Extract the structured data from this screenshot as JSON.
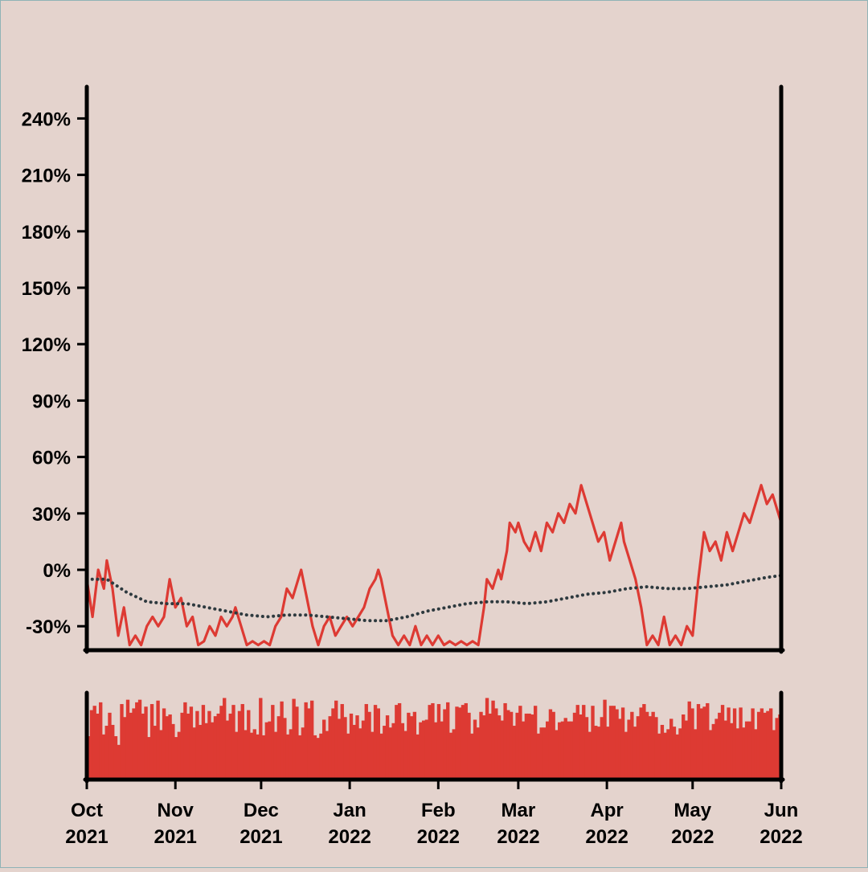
{
  "chart_data": {
    "type": "line",
    "title": "",
    "xlabel": "",
    "ylabel": "",
    "x_range": [
      "2021-10-01",
      "2022-06-01"
    ],
    "ylim": [
      -0.4,
      0.4
    ],
    "y_tick_values": [
      -0.3,
      0,
      0.3,
      0.6,
      0.9,
      1.2,
      1.5,
      1.8,
      2.1,
      2.4
    ],
    "y_tick_labels": [
      "-30%",
      "0%",
      "30%",
      "60%",
      "90%",
      "120%",
      "150%",
      "180%",
      "210%",
      "240%"
    ],
    "x_ticks": [
      {
        "date": "2021-10-01",
        "month": "Oct",
        "year": "2021"
      },
      {
        "date": "2021-11-01",
        "month": "Nov",
        "year": "2021"
      },
      {
        "date": "2021-12-01",
        "month": "Dec",
        "year": "2021"
      },
      {
        "date": "2022-01-01",
        "month": "Jan",
        "year": "2022"
      },
      {
        "date": "2022-02-01",
        "month": "Feb",
        "year": "2022"
      },
      {
        "date": "2022-03-01",
        "month": "Mar",
        "year": "2022"
      },
      {
        "date": "2022-04-01",
        "month": "Apr",
        "year": "2022"
      },
      {
        "date": "2022-05-01",
        "month": "May",
        "year": "2022"
      },
      {
        "date": "2022-06-01",
        "month": "Jun",
        "year": "2022"
      }
    ],
    "colors": {
      "price": "#dd3a33",
      "trend": "#2e3a3f",
      "background": "#e4d3cd",
      "axis": "#000000"
    },
    "series": [
      {
        "style": "line",
        "values": [
          [
            "2021-10-01",
            -0.05
          ],
          [
            "2021-10-03",
            -0.25
          ],
          [
            "2021-10-05",
            0.0
          ],
          [
            "2021-10-07",
            -0.1
          ],
          [
            "2021-10-08",
            0.05
          ],
          [
            "2021-10-10",
            -0.1
          ],
          [
            "2021-10-12",
            -0.35
          ],
          [
            "2021-10-14",
            -0.2
          ],
          [
            "2021-10-16",
            -0.4
          ],
          [
            "2021-10-18",
            -0.35
          ],
          [
            "2021-10-20",
            -0.4
          ],
          [
            "2021-10-22",
            -0.3
          ],
          [
            "2021-10-24",
            -0.25
          ],
          [
            "2021-10-26",
            -0.3
          ],
          [
            "2021-10-28",
            -0.25
          ],
          [
            "2021-10-29",
            -0.15
          ],
          [
            "2021-10-30",
            -0.05
          ],
          [
            "2021-11-01",
            -0.2
          ],
          [
            "2021-11-03",
            -0.15
          ],
          [
            "2021-11-05",
            -0.3
          ],
          [
            "2021-11-07",
            -0.25
          ],
          [
            "2021-11-09",
            -0.4
          ],
          [
            "2021-11-11",
            -0.38
          ],
          [
            "2021-11-13",
            -0.3
          ],
          [
            "2021-11-15",
            -0.35
          ],
          [
            "2021-11-17",
            -0.25
          ],
          [
            "2021-11-19",
            -0.3
          ],
          [
            "2021-11-21",
            -0.25
          ],
          [
            "2021-11-22",
            -0.2
          ],
          [
            "2021-11-24",
            -0.3
          ],
          [
            "2021-11-26",
            -0.4
          ],
          [
            "2021-11-28",
            -0.38
          ],
          [
            "2021-11-30",
            -0.4
          ],
          [
            "2021-12-02",
            -0.38
          ],
          [
            "2021-12-04",
            -0.4
          ],
          [
            "2021-12-06",
            -0.3
          ],
          [
            "2021-12-08",
            -0.25
          ],
          [
            "2021-12-10",
            -0.1
          ],
          [
            "2021-12-12",
            -0.15
          ],
          [
            "2021-12-14",
            -0.05
          ],
          [
            "2021-12-15",
            0.0
          ],
          [
            "2021-12-17",
            -0.15
          ],
          [
            "2021-12-19",
            -0.3
          ],
          [
            "2021-12-21",
            -0.4
          ],
          [
            "2021-12-23",
            -0.3
          ],
          [
            "2021-12-25",
            -0.25
          ],
          [
            "2021-12-27",
            -0.35
          ],
          [
            "2021-12-29",
            -0.3
          ],
          [
            "2021-12-31",
            -0.25
          ],
          [
            "2022-01-02",
            -0.3
          ],
          [
            "2022-01-04",
            -0.25
          ],
          [
            "2022-01-06",
            -0.2
          ],
          [
            "2022-01-08",
            -0.1
          ],
          [
            "2022-01-10",
            -0.05
          ],
          [
            "2022-01-11",
            0.0
          ],
          [
            "2022-01-12",
            -0.05
          ],
          [
            "2022-01-14",
            -0.2
          ],
          [
            "2022-01-16",
            -0.35
          ],
          [
            "2022-01-18",
            -0.4
          ],
          [
            "2022-01-20",
            -0.35
          ],
          [
            "2022-01-22",
            -0.4
          ],
          [
            "2022-01-24",
            -0.3
          ],
          [
            "2022-01-26",
            -0.4
          ],
          [
            "2022-01-28",
            -0.35
          ],
          [
            "2022-01-30",
            -0.4
          ],
          [
            "2022-02-01",
            -0.35
          ],
          [
            "2022-02-03",
            -0.4
          ],
          [
            "2022-02-05",
            -0.38
          ],
          [
            "2022-02-07",
            -0.4
          ],
          [
            "2022-02-09",
            -0.38
          ],
          [
            "2022-02-11",
            -0.4
          ],
          [
            "2022-02-13",
            -0.38
          ],
          [
            "2022-02-15",
            -0.4
          ],
          [
            "2022-02-17",
            -0.2
          ],
          [
            "2022-02-18",
            -0.05
          ],
          [
            "2022-02-20",
            -0.1
          ],
          [
            "2022-02-22",
            0.0
          ],
          [
            "2022-02-23",
            -0.05
          ],
          [
            "2022-02-25",
            0.1
          ],
          [
            "2022-02-26",
            0.25
          ],
          [
            "2022-02-28",
            0.2
          ],
          [
            "2022-03-01",
            0.25
          ],
          [
            "2022-03-03",
            0.15
          ],
          [
            "2022-03-05",
            0.1
          ],
          [
            "2022-03-07",
            0.2
          ],
          [
            "2022-03-09",
            0.1
          ],
          [
            "2022-03-11",
            0.25
          ],
          [
            "2022-03-13",
            0.2
          ],
          [
            "2022-03-15",
            0.3
          ],
          [
            "2022-03-17",
            0.25
          ],
          [
            "2022-03-19",
            0.35
          ],
          [
            "2022-03-21",
            0.3
          ],
          [
            "2022-03-23",
            0.45
          ],
          [
            "2022-03-25",
            0.35
          ],
          [
            "2022-03-27",
            0.25
          ],
          [
            "2022-03-29",
            0.15
          ],
          [
            "2022-03-31",
            0.2
          ],
          [
            "2022-04-02",
            0.05
          ],
          [
            "2022-04-04",
            0.15
          ],
          [
            "2022-04-06",
            0.25
          ],
          [
            "2022-04-07",
            0.15
          ],
          [
            "2022-04-09",
            0.05
          ],
          [
            "2022-04-11",
            -0.05
          ],
          [
            "2022-04-13",
            -0.2
          ],
          [
            "2022-04-15",
            -0.4
          ],
          [
            "2022-04-17",
            -0.35
          ],
          [
            "2022-04-19",
            -0.4
          ],
          [
            "2022-04-21",
            -0.25
          ],
          [
            "2022-04-23",
            -0.4
          ],
          [
            "2022-04-25",
            -0.35
          ],
          [
            "2022-04-27",
            -0.4
          ],
          [
            "2022-04-29",
            -0.3
          ],
          [
            "2022-05-01",
            -0.35
          ],
          [
            "2022-05-03",
            -0.05
          ],
          [
            "2022-05-05",
            0.2
          ],
          [
            "2022-05-07",
            0.1
          ],
          [
            "2022-05-09",
            0.15
          ],
          [
            "2022-05-11",
            0.05
          ],
          [
            "2022-05-13",
            0.2
          ],
          [
            "2022-05-15",
            0.1
          ],
          [
            "2022-05-17",
            0.2
          ],
          [
            "2022-05-19",
            0.3
          ],
          [
            "2022-05-21",
            0.25
          ],
          [
            "2022-05-23",
            0.35
          ],
          [
            "2022-05-25",
            0.45
          ],
          [
            "2022-05-27",
            0.35
          ],
          [
            "2022-05-29",
            0.4
          ],
          [
            "2022-05-31",
            0.3
          ],
          [
            "2022-06-01",
            0.25
          ]
        ]
      },
      {
        "style": "dotted",
        "values": [
          [
            "2021-10-01",
            -0.05
          ],
          [
            "2021-10-08",
            -0.05
          ],
          [
            "2021-10-15",
            -0.12
          ],
          [
            "2021-10-22",
            -0.17
          ],
          [
            "2021-10-29",
            -0.18
          ],
          [
            "2021-11-05",
            -0.18
          ],
          [
            "2021-11-12",
            -0.2
          ],
          [
            "2021-11-19",
            -0.22
          ],
          [
            "2021-11-26",
            -0.24
          ],
          [
            "2021-12-03",
            -0.25
          ],
          [
            "2021-12-10",
            -0.24
          ],
          [
            "2021-12-17",
            -0.24
          ],
          [
            "2021-12-24",
            -0.25
          ],
          [
            "2021-12-31",
            -0.26
          ],
          [
            "2022-01-07",
            -0.27
          ],
          [
            "2022-01-14",
            -0.27
          ],
          [
            "2022-01-21",
            -0.25
          ],
          [
            "2022-01-28",
            -0.22
          ],
          [
            "2022-02-04",
            -0.2
          ],
          [
            "2022-02-11",
            -0.18
          ],
          [
            "2022-02-18",
            -0.17
          ],
          [
            "2022-02-25",
            -0.17
          ],
          [
            "2022-03-04",
            -0.18
          ],
          [
            "2022-03-11",
            -0.17
          ],
          [
            "2022-03-18",
            -0.15
          ],
          [
            "2022-03-25",
            -0.13
          ],
          [
            "2022-04-01",
            -0.12
          ],
          [
            "2022-04-08",
            -0.1
          ],
          [
            "2022-04-15",
            -0.09
          ],
          [
            "2022-04-22",
            -0.1
          ],
          [
            "2022-04-29",
            -0.1
          ],
          [
            "2022-05-06",
            -0.09
          ],
          [
            "2022-05-13",
            -0.08
          ],
          [
            "2022-05-20",
            -0.06
          ],
          [
            "2022-05-27",
            -0.04
          ],
          [
            "2022-06-01",
            -0.03
          ]
        ]
      }
    ],
    "volume_bars": [
      0.5,
      0.8,
      0.85,
      0.76,
      0.89,
      0.52,
      0.62,
      0.77,
      0.63,
      0.5,
      0.4,
      0.87,
      0.72,
      0.92,
      0.77,
      0.82,
      0.89,
      0.92,
      0.76,
      0.84,
      0.49,
      0.87,
      0.62,
      0.91,
      0.57,
      0.82,
      0.73,
      0.75,
      0.64,
      0.49,
      0.55,
      0.77,
      0.89,
      0.76,
      0.84,
      0.6,
      0.79,
      0.63,
      0.86,
      0.65,
      0.79,
      0.66,
      0.73,
      0.76,
      0.85,
      0.94,
      0.68,
      0.76,
      0.86,
      0.55,
      0.79,
      0.87,
      0.57,
      0.8,
      0.54,
      0.58,
      0.52,
      0.94,
      0.51,
      0.66,
      0.67,
      0.86,
      0.55,
      0.73,
      0.9,
      0.71,
      0.52,
      0.58,
      0.93,
      0.84,
      0.51,
      0.6,
      0.89,
      0.82,
      0.91,
      0.51,
      0.48,
      0.53,
      0.69,
      0.56,
      0.73,
      0.82,
      0.91,
      0.7,
      0.87,
      0.72,
      0.53,
      0.76,
      0.63,
      0.74,
      0.59,
      0.68,
      0.87,
      0.78,
      0.55,
      0.86,
      0.82,
      0.53,
      0.62,
      0.74,
      0.6,
      0.65,
      0.86,
      0.88,
      0.65,
      0.56,
      0.77,
      0.73,
      0.78,
      0.52,
      0.66,
      0.68,
      0.69,
      0.86,
      0.88,
      0.66,
      0.87,
      0.67,
      0.81,
      0.89,
      0.54,
      0.58,
      0.84,
      0.83,
      0.86,
      0.88,
      0.77,
      0.53,
      0.69,
      0.6,
      0.78,
      0.74,
      0.94,
      0.76,
      0.91,
      0.82,
      0.74,
      0.68,
      0.88,
      0.8,
      0.78,
      0.62,
      0.77,
      0.85,
      0.67,
      0.76,
      0.76,
      0.75,
      0.85,
      0.53,
      0.6,
      0.6,
      0.67,
      0.81,
      0.78,
      0.57,
      0.66,
      0.67,
      0.71,
      0.67,
      0.67,
      0.77,
      0.86,
      0.75,
      0.86,
      0.72,
      0.55,
      0.85,
      0.62,
      0.61,
      0.72,
      0.92,
      0.61,
      0.85,
      0.85,
      0.81,
      0.7,
      0.83,
      0.55,
      0.69,
      0.78,
      0.61,
      0.73,
      0.83,
      0.87,
      0.78,
      0.73,
      0.78,
      0.72,
      0.53,
      0.63,
      0.54,
      0.58,
      0.7,
      0.61,
      0.52,
      0.59,
      0.75,
      0.68,
      0.9,
      0.82,
      0.58,
      0.87,
      0.82,
      0.84,
      0.88,
      0.57,
      0.64,
      0.7,
      0.77,
      0.86,
      0.68,
      0.83,
      0.65,
      0.82,
      0.59,
      0.83,
      0.6,
      0.67,
      0.67,
      0.82,
      0.58,
      0.78,
      0.82,
      0.77,
      0.79,
      0.82,
      0.57,
      0.71,
      0.75
    ]
  }
}
